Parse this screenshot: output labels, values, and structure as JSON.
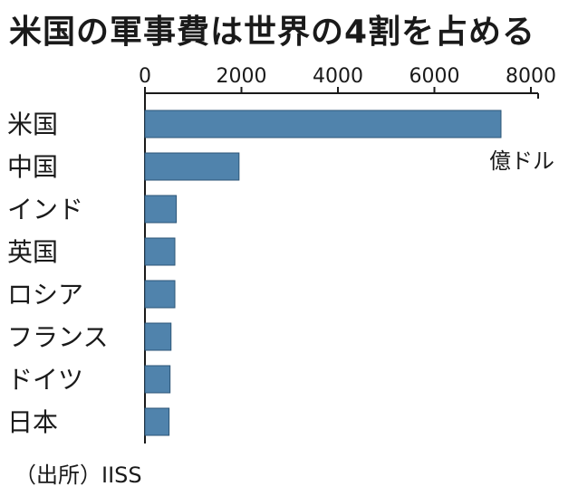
{
  "chart_data": {
    "type": "bar",
    "orientation": "horizontal",
    "title": "米国の軍事費は世界の4割を占める",
    "categories": [
      "米国",
      "中国",
      "インド",
      "英国",
      "ロシア",
      "フランス",
      "ドイツ",
      "日本"
    ],
    "values": [
      7380,
      1950,
      650,
      620,
      620,
      540,
      520,
      500
    ],
    "unit_label": "億ドル",
    "xlim": [
      0,
      8000
    ],
    "xticks": [
      "0",
      "2000",
      "4000",
      "6000",
      "8000"
    ],
    "xtick_values": [
      0,
      2000,
      4000,
      6000,
      8000
    ],
    "grid": false,
    "bar_color": "#5083ac",
    "source": "（出所）IISS"
  }
}
